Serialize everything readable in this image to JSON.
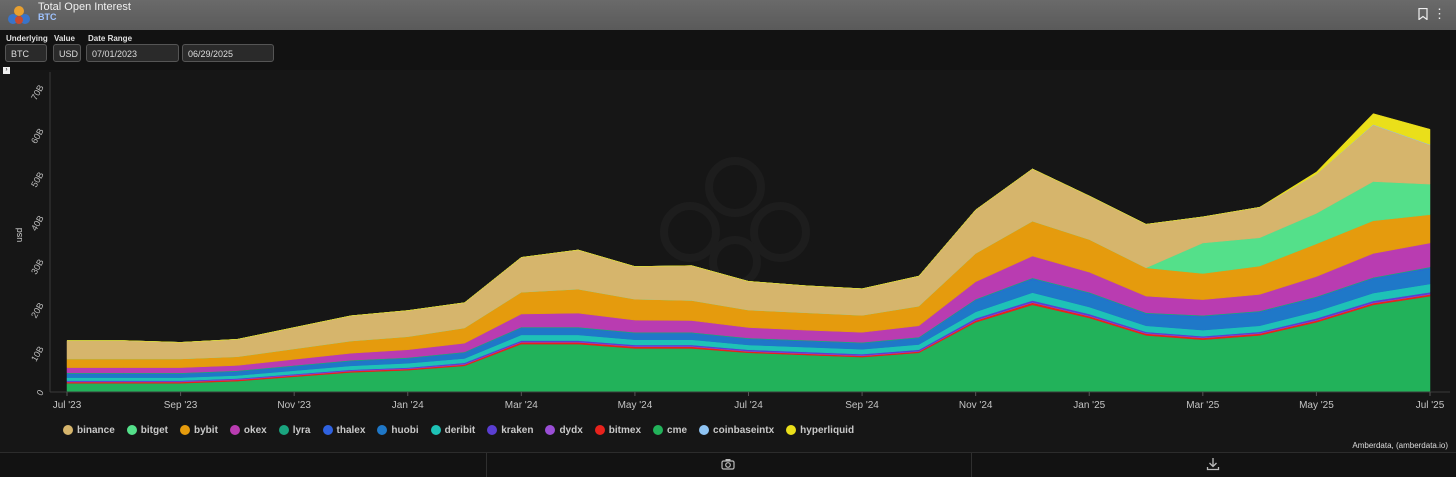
{
  "header": {
    "title": "Total Open Interest",
    "subtitle": "BTC"
  },
  "filters": {
    "underlying": {
      "label": "Underlying",
      "value": "BTC"
    },
    "value": {
      "label": "Value",
      "value": "USD"
    },
    "date_range": {
      "label": "Date Range",
      "start": "07/01/2023",
      "end": "06/29/2025"
    }
  },
  "credit": "Amberdata, (amberdata.io)",
  "chart_data": {
    "type": "area",
    "stacked": true,
    "ylabel": "usd",
    "ylim": [
      0,
      70
    ],
    "yticks": [
      0,
      10,
      20,
      30,
      40,
      50,
      60,
      70
    ],
    "ytick_labels": [
      "0",
      "10B",
      "20B",
      "30B",
      "40B",
      "50B",
      "60B",
      "70B"
    ],
    "x_range": [
      0,
      24
    ],
    "xticks": [
      0,
      2,
      4,
      6,
      8,
      10,
      12,
      14,
      16,
      18,
      20,
      22,
      24
    ],
    "xtick_labels": [
      "Jul '23",
      "Sep '23",
      "Nov '23",
      "Jan '24",
      "Mar '24",
      "May '24",
      "Jul '24",
      "Sep '24",
      "Nov '24",
      "Jan '25",
      "Mar '25",
      "May '25",
      "Jul '25"
    ],
    "x": [
      0,
      1,
      2,
      3,
      4,
      5,
      6,
      7,
      8,
      9,
      10,
      11,
      12,
      13,
      14,
      15,
      16,
      17,
      18,
      19,
      20,
      21,
      22,
      23,
      24
    ],
    "colors": {
      "binance": "#d6b56c",
      "bitget": "#54e08a",
      "bybit": "#e59b0d",
      "okex": "#b93cb1",
      "lyra": "#1aa57f",
      "thalex": "#2f62e0",
      "huobi": "#1f78c8",
      "deribit": "#1ec2b6",
      "kraken": "#5a3ed2",
      "dydx": "#9a4ed6",
      "bitmex": "#e8221c",
      "cme": "#22b25a",
      "coinbaseintx": "#8fc4f4",
      "hyperliquid": "#eadf1a"
    },
    "series": [
      {
        "name": "cme",
        "values": [
          2,
          2,
          2,
          2.5,
          3.5,
          4.5,
          5,
          6,
          11,
          11,
          10,
          10,
          9,
          8.5,
          8,
          9,
          16,
          20,
          17,
          13,
          12,
          13,
          16,
          20,
          22
        ]
      },
      {
        "name": "bitmex",
        "values": [
          0.3,
          0.3,
          0.3,
          0.3,
          0.3,
          0.3,
          0.3,
          0.3,
          0.4,
          0.4,
          0.4,
          0.4,
          0.3,
          0.3,
          0.3,
          0.3,
          0.4,
          0.5,
          0.4,
          0.4,
          0.4,
          0.4,
          0.4,
          0.4,
          0.4
        ]
      },
      {
        "name": "dydx",
        "values": [
          0.1,
          0.1,
          0.1,
          0.1,
          0.1,
          0.1,
          0.1,
          0.1,
          0.1,
          0.1,
          0.1,
          0.1,
          0.1,
          0.1,
          0.1,
          0.1,
          0.1,
          0.1,
          0.1,
          0.1,
          0.1,
          0.1,
          0.1,
          0.1,
          0.1
        ]
      },
      {
        "name": "kraken",
        "values": [
          0.2,
          0.2,
          0.2,
          0.2,
          0.2,
          0.2,
          0.2,
          0.3,
          0.3,
          0.3,
          0.3,
          0.3,
          0.3,
          0.3,
          0.3,
          0.3,
          0.4,
          0.4,
          0.4,
          0.3,
          0.3,
          0.3,
          0.4,
          0.4,
          0.4
        ]
      },
      {
        "name": "deribit",
        "values": [
          0.7,
          0.7,
          0.7,
          0.7,
          0.8,
          0.9,
          1,
          1,
          1.3,
          1.3,
          1.2,
          1.2,
          1.1,
          1.1,
          1.1,
          1.2,
          1.5,
          1.8,
          1.6,
          1.4,
          1.4,
          1.4,
          1.6,
          1.8,
          1.9
        ]
      },
      {
        "name": "huobi",
        "values": [
          0.8,
          0.8,
          0.8,
          0.8,
          0.9,
          1,
          1,
          1.2,
          1.5,
          1.5,
          1.4,
          1.4,
          1.3,
          1.3,
          1.3,
          1.4,
          2.5,
          3,
          3,
          2.6,
          3,
          3,
          3,
          3.2,
          3.5
        ]
      },
      {
        "name": "thalex",
        "values": [
          0.1,
          0.1,
          0.1,
          0.1,
          0.1,
          0.1,
          0.1,
          0.1,
          0.1,
          0.1,
          0.1,
          0.1,
          0.1,
          0.1,
          0.1,
          0.1,
          0.2,
          0.2,
          0.2,
          0.2,
          0.2,
          0.2,
          0.2,
          0.2,
          0.2
        ]
      },
      {
        "name": "lyra",
        "values": [
          0.2,
          0.2,
          0.2,
          0.2,
          0.2,
          0.2,
          0.2,
          0.2,
          0.2,
          0.2,
          0.2,
          0.2,
          0.2,
          0.2,
          0.2,
          0.2,
          0.2,
          0.2,
          0.2,
          0.2,
          0.2,
          0.2,
          0.2,
          0.2,
          0.2
        ]
      },
      {
        "name": "okex",
        "values": [
          1.2,
          1.2,
          1.2,
          1.2,
          1.4,
          1.6,
          1.8,
          2,
          3,
          3.2,
          2.8,
          2.7,
          2.4,
          2.3,
          2.3,
          2.6,
          4,
          5,
          4.6,
          3.8,
          3.6,
          3.8,
          4.6,
          5.5,
          5.5
        ]
      },
      {
        "name": "bybit",
        "values": [
          2,
          2,
          2,
          2,
          2.4,
          2.8,
          3,
          3.5,
          5,
          5.5,
          4.8,
          4.6,
          4,
          4,
          3.9,
          4.5,
          6.5,
          8,
          7.5,
          6.5,
          6,
          6.5,
          7.5,
          7.5,
          6.5
        ]
      },
      {
        "name": "bitget",
        "values": [
          0,
          0,
          0,
          0,
          0,
          0,
          0,
          0,
          0,
          0,
          0,
          0,
          0,
          0,
          0,
          0,
          0,
          0,
          0,
          0,
          7,
          6.5,
          7,
          9,
          7
        ]
      },
      {
        "name": "binance",
        "values": [
          4.2,
          4.2,
          3.8,
          4,
          4.9,
          5.8,
          6,
          5.8,
          8,
          9,
          7.5,
          8,
          6.6,
          6.2,
          6.1,
          6.9,
          10,
          12,
          10,
          10,
          6,
          7,
          9,
          13,
          9
        ]
      },
      {
        "name": "coinbaseintx",
        "values": [
          0,
          0,
          0,
          0,
          0,
          0,
          0,
          0,
          0,
          0,
          0,
          0,
          0,
          0,
          0,
          0,
          0,
          0,
          0,
          0,
          0,
          0,
          0,
          0.1,
          0.1
        ]
      },
      {
        "name": "hyperliquid",
        "values": [
          0,
          0,
          0,
          0,
          0,
          0,
          0,
          0,
          0,
          0,
          0,
          0,
          0,
          0,
          0,
          0,
          0,
          0,
          0,
          0,
          0,
          0,
          0.5,
          2.5,
          3.5
        ]
      }
    ],
    "legend_placement": "bottom-left",
    "grid": false
  },
  "legend_order": [
    "binance",
    "bitget",
    "bybit",
    "okex",
    "lyra",
    "thalex",
    "huobi",
    "deribit",
    "kraken",
    "dydx",
    "bitmex",
    "cme",
    "coinbaseintx",
    "hyperliquid"
  ],
  "icons": {
    "bookmark": "bookmark-icon",
    "menu": "kebab-menu-icon",
    "camera": "camera-icon",
    "download": "download-icon"
  }
}
